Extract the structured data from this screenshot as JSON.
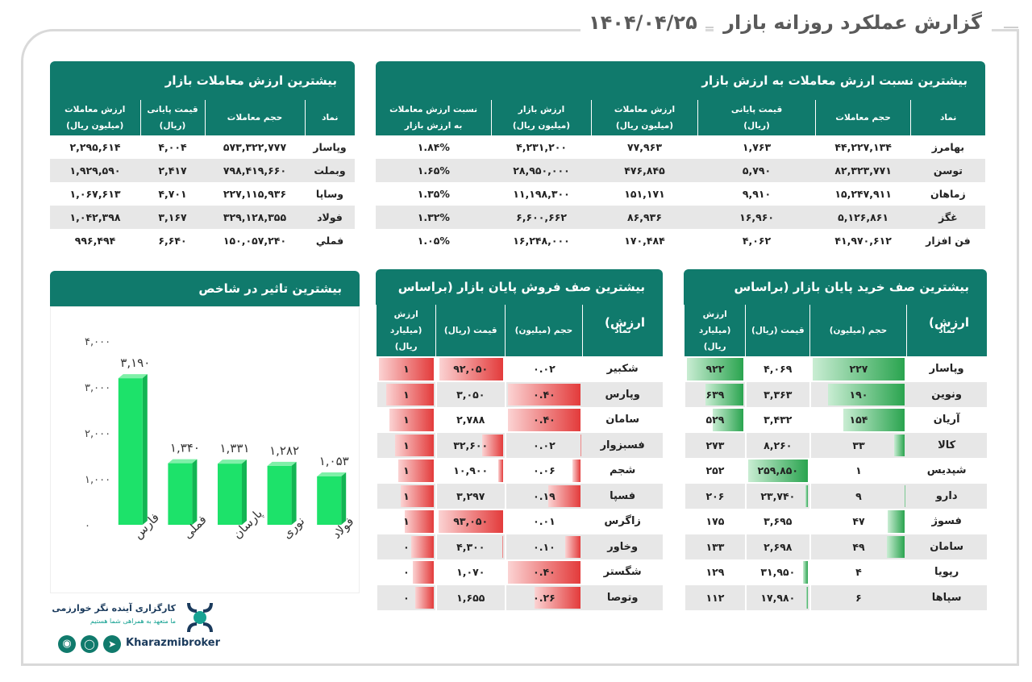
{
  "report": {
    "title": "گزارش عملکرد روزانه بازار",
    "date": "۱۴۰۴/۰۴/۲۵"
  },
  "ratio_table": {
    "title": "بیشترین نسبت ارزش معاملات به ارزش بازار",
    "headers": [
      {
        "l1": "نماد",
        "l2": ""
      },
      {
        "l1": "حجم معاملات",
        "l2": ""
      },
      {
        "l1": "قیمت پایانی",
        "l2": "(ریال)"
      },
      {
        "l1": "ارزش معاملات",
        "l2": "(میلیون ریال)"
      },
      {
        "l1": "ارزش بازار",
        "l2": "(میلیون ریال)"
      },
      {
        "l1": "نسبت ارزش معاملات",
        "l2": "به ارزش بازار"
      }
    ],
    "rows": [
      [
        "بهامرز",
        "۴۴,۲۲۷,۱۳۴",
        "۱,۷۶۳",
        "۷۷,۹۶۳",
        "۴,۲۳۱,۲۰۰",
        "۱.۸۴%"
      ],
      [
        "توسن",
        "۸۲,۳۲۳,۷۷۱",
        "۵,۷۹۰",
        "۴۷۶,۸۴۵",
        "۲۸,۹۵۰,۰۰۰",
        "۱.۶۵%"
      ],
      [
        "زماهان",
        "۱۵,۲۴۷,۹۱۱",
        "۹,۹۱۰",
        "۱۵۱,۱۷۱",
        "۱۱,۱۹۸,۳۰۰",
        "۱.۳۵%"
      ],
      [
        "غگز",
        "۵,۱۲۶,۸۶۱",
        "۱۶,۹۶۰",
        "۸۶,۹۳۶",
        "۶,۶۰۰,۶۶۲",
        "۱.۳۲%"
      ],
      [
        "فن افزار",
        "۴۱,۹۷۰,۶۱۲",
        "۴,۰۶۲",
        "۱۷۰,۴۸۴",
        "۱۶,۲۴۸,۰۰۰",
        "۱.۰۵%"
      ]
    ]
  },
  "value_table": {
    "title": "بیشترین ارزش معاملات بازار",
    "headers": [
      {
        "l1": "نماد",
        "l2": ""
      },
      {
        "l1": "حجم معاملات",
        "l2": ""
      },
      {
        "l1": "قیمت پایانی",
        "l2": "(ریال)"
      },
      {
        "l1": "ارزش معاملات",
        "l2": "(میلیون ریال)"
      }
    ],
    "rows": [
      [
        "وپاسار",
        "۵۷۳,۳۲۲,۷۷۷",
        "۴,۰۰۴",
        "۲,۲۹۵,۶۱۴"
      ],
      [
        "وبملت",
        "۷۹۸,۴۱۹,۶۶۰",
        "۲,۴۱۷",
        "۱,۹۲۹,۵۹۰"
      ],
      [
        "وساپا",
        "۲۲۷,۱۱۵,۹۳۶",
        "۴,۷۰۱",
        "۱,۰۶۷,۶۱۳"
      ],
      [
        "فولاد",
        "۳۲۹,۱۲۸,۳۵۵",
        "۳,۱۶۷",
        "۱,۰۴۲,۳۹۸"
      ],
      [
        "فملي",
        "۱۵۰,۰۵۷,۲۴۰",
        "۶,۶۴۰",
        "۹۹۶,۴۹۴"
      ]
    ]
  },
  "buy_queue": {
    "title": "بیشترین صف خرید پایان بازار (براساس ارزش)",
    "headers": [
      {
        "l1": "نماد",
        "l2": ""
      },
      {
        "l1": "حجم (میلیون)",
        "l2": ""
      },
      {
        "l1": "قیمت (ریال)",
        "l2": ""
      },
      {
        "l1": "ارزش",
        "l2": "(میلیارد ریال)"
      }
    ],
    "rows": [
      {
        "sym": "وپاسار",
        "vol": "۲۲۷",
        "vol_f": 1.0,
        "price": "۴,۰۶۹",
        "price_f": 0.0,
        "val": "۹۲۲",
        "val_f": 1.0
      },
      {
        "sym": "ونوین",
        "vol": "۱۹۰",
        "vol_f": 0.84,
        "price": "۳,۳۶۳",
        "price_f": 0.0,
        "val": "۶۳۹",
        "val_f": 0.69
      },
      {
        "sym": "آریان",
        "vol": "۱۵۴",
        "vol_f": 0.68,
        "price": "۳,۴۳۲",
        "price_f": 0.0,
        "val": "۵۲۹",
        "val_f": 0.57
      },
      {
        "sym": "کالا",
        "vol": "۳۳",
        "vol_f": 0.15,
        "price": "۸,۲۶۰",
        "price_f": 0.0,
        "val": "۲۷۳",
        "val_f": 0.0
      },
      {
        "sym": "شپدیس",
        "vol": "۱",
        "vol_f": 0.0,
        "price": "۲۵۹,۸۵۰",
        "price_f": 1.0,
        "val": "۲۵۲",
        "val_f": 0.0
      },
      {
        "sym": "دارو",
        "vol": "۹",
        "vol_f": 0.04,
        "price": "۲۳,۷۴۰",
        "price_f": 0.09,
        "val": "۲۰۶",
        "val_f": 0.0
      },
      {
        "sym": "فسوژ",
        "vol": "۴۷",
        "vol_f": 0.21,
        "price": "۳,۶۹۵",
        "price_f": 0.0,
        "val": "۱۷۵",
        "val_f": 0.0
      },
      {
        "sym": "سامان",
        "vol": "۴۹",
        "vol_f": 0.22,
        "price": "۲,۶۹۸",
        "price_f": 0.0,
        "val": "۱۳۳",
        "val_f": 0.0
      },
      {
        "sym": "رپویا",
        "vol": "۴",
        "vol_f": 0.02,
        "price": "۳۱,۹۵۰",
        "price_f": 0.12,
        "val": "۱۲۹",
        "val_f": 0.0
      },
      {
        "sym": "سپاها",
        "vol": "۶",
        "vol_f": 0.03,
        "price": "۱۷,۹۸۰",
        "price_f": 0.07,
        "val": "۱۱۲",
        "val_f": 0.0
      }
    ]
  },
  "sell_queue": {
    "title": "بیشترین صف فروش پایان بازار (براساس ارزش)",
    "headers": [
      {
        "l1": "نماد",
        "l2": ""
      },
      {
        "l1": "حجم (میلیون)",
        "l2": ""
      },
      {
        "l1": "قیمت (ریال)",
        "l2": ""
      },
      {
        "l1": "ارزش",
        "l2": "(میلیارد ریال)"
      }
    ],
    "rows": [
      {
        "sym": "شکبیر",
        "vol": "۰.۰۲",
        "vol_f": 0.02,
        "price": "۹۲,۰۵۰",
        "price_f": 0.99,
        "val": "۱",
        "val_f": 1.0
      },
      {
        "sym": "وپارس",
        "vol": "۰.۴۰",
        "vol_f": 1.0,
        "price": "۳,۰۵۰",
        "price_f": 0.03,
        "val": "۱",
        "val_f": 0.88
      },
      {
        "sym": "سامان",
        "vol": "۰.۴۰",
        "vol_f": 1.0,
        "price": "۲,۷۸۸",
        "price_f": 0.03,
        "val": "۱",
        "val_f": 0.82
      },
      {
        "sym": "فسبزوار",
        "vol": "۰.۰۲",
        "vol_f": 0.05,
        "price": "۳۲,۶۰۰",
        "price_f": 0.35,
        "val": "۱",
        "val_f": 0.72
      },
      {
        "sym": "شجم",
        "vol": "۰.۰۶",
        "vol_f": 0.15,
        "price": "۱۰,۹۰۰",
        "price_f": 0.12,
        "val": "۱",
        "val_f": 0.67
      },
      {
        "sym": "فسپا",
        "vol": "۰.۱۹",
        "vol_f": 0.47,
        "price": "۳,۲۹۷",
        "price_f": 0.04,
        "val": "۱",
        "val_f": 0.62
      },
      {
        "sym": "زاگرس",
        "vol": "۰.۰۱",
        "vol_f": 0.02,
        "price": "۹۳,۰۵۰",
        "price_f": 1.0,
        "val": "۱",
        "val_f": 0.56
      },
      {
        "sym": "وخاور",
        "vol": "۰.۱۰",
        "vol_f": 0.25,
        "price": "۴,۳۰۰",
        "price_f": 0.05,
        "val": "۰",
        "val_f": 0.45
      },
      {
        "sym": "شگستر",
        "vol": "۰.۴۰",
        "vol_f": 1.0,
        "price": "۱,۰۷۰",
        "price_f": 0.01,
        "val": "۰",
        "val_f": 0.42
      },
      {
        "sym": "وتوصا",
        "vol": "۰.۲۶",
        "vol_f": 0.65,
        "price": "۱,۶۵۵",
        "price_f": 0.02,
        "val": "۰",
        "val_f": 0.38
      }
    ]
  },
  "chart_data": {
    "type": "bar",
    "title": "بیشترین تاثیر در شاخص",
    "categories": [
      "فارس",
      "فملی",
      "پارسان",
      "نوری",
      "فولاد"
    ],
    "values": [
      3190,
      1340,
      1331,
      1282,
      1053
    ],
    "value_labels": [
      "۳,۱۹۰",
      "۱,۳۴۰",
      "۱,۳۳۱",
      "۱,۲۸۲",
      "۱,۰۵۳"
    ],
    "yticks": [
      0,
      1000,
      2000,
      3000,
      4000
    ],
    "ytick_labels": [
      "۰",
      "۱,۰۰۰",
      "۲,۰۰۰",
      "۳,۰۰۰",
      "۴,۰۰۰"
    ],
    "ylim": [
      0,
      4000
    ],
    "color": "#1de26a"
  },
  "brand": {
    "name": "کارگزاری آینده نگر خوارزمی",
    "slogan": "ما متعهد به همراهی شما هستیم",
    "handle": "Kharazmibroker",
    "accent": "#107a6c",
    "logo_color": "#1a3a5c"
  }
}
